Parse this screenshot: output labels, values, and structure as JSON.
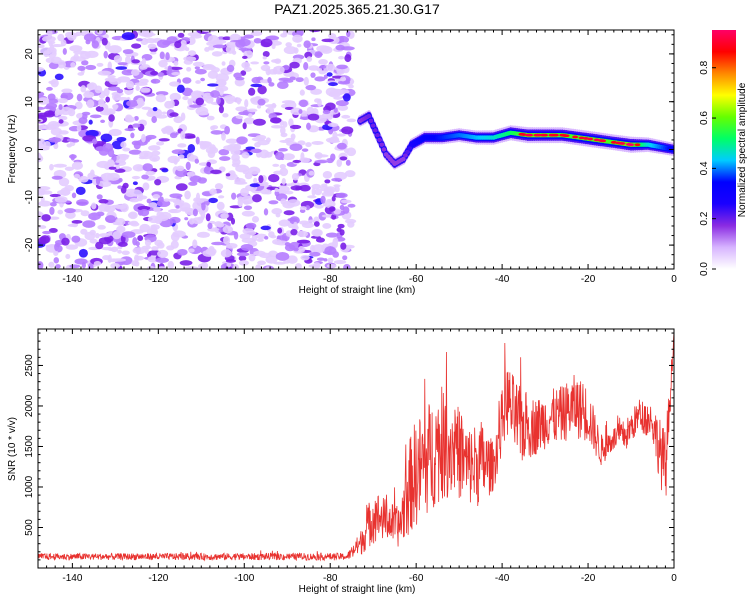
{
  "title": "PAZ1.2025.365.21.30.G17",
  "chart_data": [
    {
      "type": "heatmap",
      "name": "spectrogram",
      "xlabel": "Height of straight line (km)",
      "ylabel": "Frequency (Hz)",
      "xlim": [
        -148,
        0
      ],
      "ylim": [
        -25,
        25
      ],
      "xticks": [
        -140,
        -120,
        -100,
        -80,
        -60,
        -40,
        -20,
        0
      ],
      "yticks": [
        -20,
        -10,
        0,
        10,
        20
      ],
      "noise_region_x": [
        -148,
        -75
      ],
      "noise_region_y": [
        -25,
        25
      ],
      "ridge": {
        "x": [
          -73,
          -71,
          -69,
          -67,
          -65,
          -63,
          -61,
          -58,
          -54,
          -50,
          -46,
          -42,
          -38,
          -34,
          -30,
          -26,
          -22,
          -18,
          -14,
          -10,
          -6,
          -3,
          0
        ],
        "y": [
          6,
          7,
          3,
          -1,
          -3,
          -2,
          1,
          2.5,
          2.5,
          3,
          2.5,
          2.5,
          3.5,
          3,
          3,
          3,
          2.5,
          2,
          1.5,
          1,
          1,
          0.5,
          0
        ],
        "amplitude": [
          0.25,
          0.3,
          0.3,
          0.25,
          0.25,
          0.25,
          0.4,
          0.5,
          0.55,
          0.6,
          0.65,
          0.7,
          0.8,
          0.92,
          0.9,
          0.88,
          0.9,
          0.92,
          0.88,
          0.95,
          0.7,
          0.6,
          0.5
        ]
      },
      "colorbar": {
        "label": "Normalized spectral amplitude",
        "range": [
          0,
          0.95
        ],
        "ticks": [
          0.0,
          0.2,
          0.4,
          0.6,
          0.8
        ],
        "colors": [
          "#ffffff",
          "#d7b4ff",
          "#8a2be2",
          "#1a00ff",
          "#0000ff",
          "#00ccff",
          "#00ff66",
          "#66ff00",
          "#ffff00",
          "#ff8800",
          "#ff0000",
          "#ff0066"
        ]
      }
    },
    {
      "type": "line",
      "name": "snr",
      "xlabel": "Height of straight line (km)",
      "ylabel": "SNR (10 * v/v)",
      "xlim": [
        -148,
        0
      ],
      "ylim": [
        0,
        2950
      ],
      "xticks": [
        -140,
        -120,
        -100,
        -80,
        -60,
        -40,
        -20,
        0
      ],
      "yticks": [
        500,
        1000,
        1500,
        2000,
        2500
      ],
      "color": "#e8322f",
      "envelope": {
        "x": [
          -148,
          -76,
          -73,
          -70,
          -67,
          -64,
          -61,
          -58,
          -55,
          -51,
          -48,
          -45,
          -42,
          -39,
          -36,
          -32,
          -29,
          -26,
          -23,
          -20,
          -17,
          -14,
          -11,
          -8,
          -5,
          -2,
          0
        ],
        "mean": [
          140,
          140,
          300,
          650,
          600,
          500,
          1100,
          1300,
          1500,
          1500,
          1250,
          1300,
          1250,
          2100,
          1750,
          1750,
          1850,
          1900,
          2000,
          1900,
          1450,
          1600,
          1650,
          1900,
          1800,
          1200,
          2900
        ],
        "amp": [
          40,
          45,
          150,
          350,
          250,
          250,
          650,
          700,
          700,
          600,
          500,
          550,
          300,
          450,
          500,
          350,
          350,
          350,
          400,
          350,
          200,
          150,
          200,
          200,
          250,
          500,
          50
        ]
      }
    }
  ]
}
